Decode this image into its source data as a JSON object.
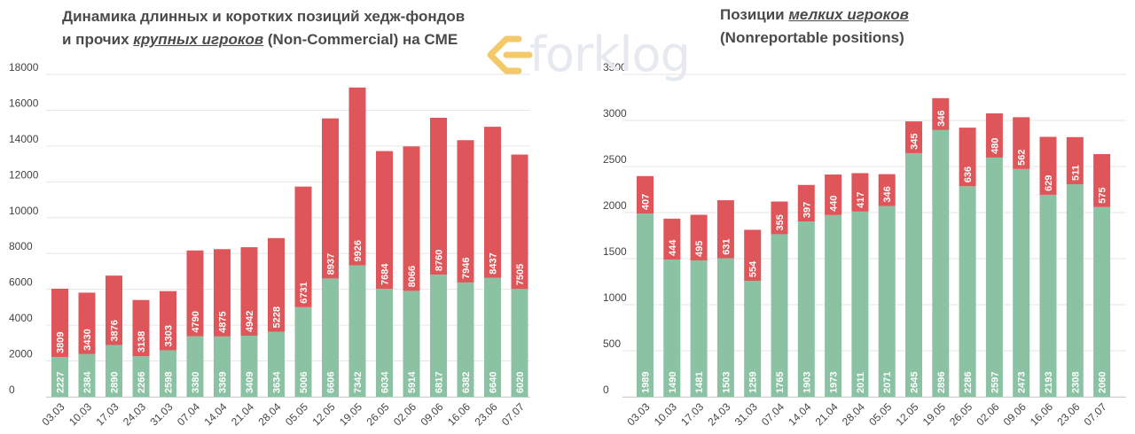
{
  "titles": {
    "left_line1": "Динамика длинных и коротких позиций хедж-фондов",
    "left_line2_pre": "и прочих ",
    "left_line2_em": "крупных игроков",
    "left_line2_post": " (Non-Commercial) на CME",
    "right_line1_pre": "Позиции ",
    "right_line1_em": "мелких игроков",
    "right_line2": "(Nonreportable positions)"
  },
  "logo": {
    "text": "forklog",
    "icon": "forklog-arrows-icon"
  },
  "colors": {
    "long": "#8cc2a4",
    "short": "#de5659",
    "grid": "#e6e6e6",
    "tick": "#444444",
    "label": "#ffffff"
  },
  "chart_data": [
    {
      "type": "bar",
      "stacked": true,
      "categories": [
        "03.03",
        "10.03",
        "17.03",
        "24.03",
        "31.03",
        "07.04",
        "14.04",
        "21.04",
        "28.04",
        "05.05",
        "12.05",
        "19.05",
        "26.05",
        "02.06",
        "09.06",
        "16.06",
        "23.06",
        "07.07"
      ],
      "series": [
        {
          "color": "#8cc2a4",
          "values": [
            2227,
            2384,
            2890,
            2266,
            2598,
            3380,
            3369,
            3409,
            3634,
            5006,
            6606,
            7342,
            6034,
            5914,
            6817,
            6382,
            6640,
            6020
          ]
        },
        {
          "color": "#de5659",
          "values": [
            3809,
            3430,
            3876,
            3138,
            3303,
            4790,
            4875,
            4942,
            5228,
            6731,
            8937,
            9926,
            7684,
            8066,
            8760,
            7946,
            8437,
            7505
          ]
        }
      ],
      "ylim": [
        0,
        18000
      ],
      "yticks": [
        0,
        2000,
        4000,
        6000,
        8000,
        10000,
        12000,
        14000,
        16000,
        18000
      ],
      "grid": true,
      "data_labels": true
    },
    {
      "type": "bar",
      "stacked": true,
      "categories": [
        "03.03",
        "10.03",
        "17.03",
        "24.03",
        "31.03",
        "07.04",
        "14.04",
        "21.04",
        "28.04",
        "05.05",
        "12.05",
        "19.05",
        "26.05",
        "02.06",
        "09.06",
        "16.06",
        "23.06",
        "07.07"
      ],
      "series": [
        {
          "color": "#8cc2a4",
          "values": [
            1989,
            1490,
            1481,
            1503,
            1259,
            1765,
            1903,
            1973,
            2011,
            2071,
            2645,
            2896,
            2286,
            2597,
            2473,
            2193,
            2308,
            2060
          ]
        },
        {
          "color": "#de5659",
          "values": [
            407,
            444,
            495,
            631,
            554,
            355,
            397,
            440,
            417,
            346,
            345,
            346,
            636,
            480,
            562,
            629,
            511,
            575
          ]
        }
      ],
      "ylim": [
        0,
        3500
      ],
      "yticks": [
        0,
        500,
        1000,
        1500,
        2000,
        2500,
        3000,
        3500
      ],
      "grid": true,
      "data_labels": true
    }
  ]
}
